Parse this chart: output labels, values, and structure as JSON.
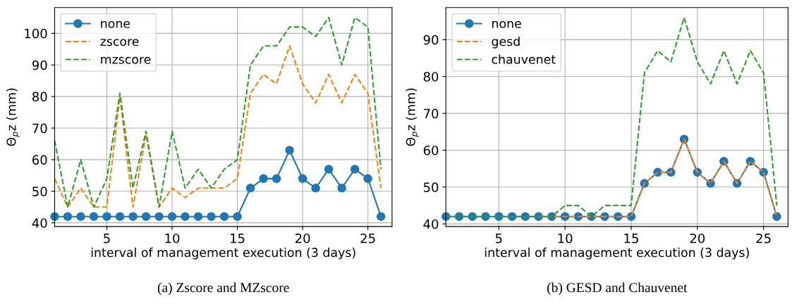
{
  "chart_data": [
    {
      "type": "line",
      "title": "(a) Zscore and MZscore",
      "xlabel": "interval of management execution (3 days)",
      "ylabel": "Θ$_{p}$z (mm)",
      "x": [
        1,
        2,
        3,
        4,
        5,
        6,
        7,
        8,
        9,
        10,
        11,
        12,
        13,
        14,
        15,
        16,
        17,
        18,
        19,
        20,
        21,
        22,
        23,
        24,
        25,
        26
      ],
      "xlim": [
        1,
        26.85
      ],
      "xticks": [
        5,
        10,
        15,
        20,
        25
      ],
      "ylim": [
        38.85,
        108.15
      ],
      "yticks": [
        40,
        50,
        60,
        70,
        80,
        90,
        100
      ],
      "grid": true,
      "legend": "top left",
      "series": [
        {
          "name": "none",
          "color": "#1f77b4",
          "marker": "circle",
          "line_style": "solid",
          "values": [
            42,
            42,
            42,
            42,
            42,
            42,
            42,
            42,
            42,
            42,
            42,
            42,
            42,
            42,
            42,
            51,
            54,
            54,
            63,
            54,
            51,
            57,
            51,
            57,
            54,
            42
          ]
        },
        {
          "name": "zscore",
          "color": "#ff7f0e",
          "marker": "none",
          "line_style": "dashed",
          "values": [
            54,
            45,
            51,
            45,
            45,
            80,
            45,
            68,
            45,
            51,
            48,
            51,
            51,
            51,
            54,
            81,
            87,
            84,
            96,
            84,
            78,
            87,
            78,
            87,
            81,
            51
          ]
        },
        {
          "name": "mzscore",
          "color": "#2ca02c",
          "marker": "none",
          "line_style": "dashed",
          "values": [
            66,
            45,
            60,
            45,
            54,
            81,
            51,
            69,
            45,
            69,
            51,
            57,
            51,
            57,
            60,
            90,
            96,
            96,
            102,
            102,
            99,
            105,
            90,
            105,
            102,
            57
          ]
        }
      ]
    },
    {
      "type": "line",
      "title": "(b) GESD and Chauvenet",
      "xlabel": "interval of management execution (3 days)",
      "ylabel": "Θ$_{p}$z (mm)",
      "x": [
        1,
        2,
        3,
        4,
        5,
        6,
        7,
        8,
        9,
        10,
        11,
        12,
        13,
        14,
        15,
        16,
        17,
        18,
        19,
        20,
        21,
        22,
        23,
        24,
        25,
        26
      ],
      "xlim": [
        1,
        26.85
      ],
      "xticks": [
        5,
        10,
        15,
        20,
        25
      ],
      "ylim": [
        39.3,
        98.7
      ],
      "yticks": [
        40,
        50,
        60,
        70,
        80,
        90
      ],
      "grid": true,
      "legend": "top left",
      "series": [
        {
          "name": "none",
          "color": "#1f77b4",
          "marker": "circle",
          "line_style": "solid",
          "values": [
            42,
            42,
            42,
            42,
            42,
            42,
            42,
            42,
            42,
            42,
            42,
            42,
            42,
            42,
            42,
            51,
            54,
            54,
            63,
            54,
            51,
            57,
            51,
            57,
            54,
            42
          ]
        },
        {
          "name": "gesd",
          "color": "#ff7f0e",
          "marker": "none",
          "line_style": "dashed",
          "values": [
            null,
            null,
            null,
            null,
            null,
            null,
            null,
            42,
            42,
            42,
            42,
            42,
            42,
            42,
            42,
            51,
            54,
            54,
            63,
            54,
            51,
            57,
            51,
            57,
            54,
            42
          ]
        },
        {
          "name": "chauvenet",
          "color": "#2ca02c",
          "marker": "none",
          "line_style": "dashed",
          "values": [
            42,
            42,
            42,
            42,
            42,
            42,
            42,
            42,
            42,
            45,
            45,
            42,
            45,
            45,
            45,
            81,
            87,
            84,
            96,
            84,
            78,
            87,
            78,
            87,
            81,
            45
          ]
        }
      ]
    }
  ]
}
